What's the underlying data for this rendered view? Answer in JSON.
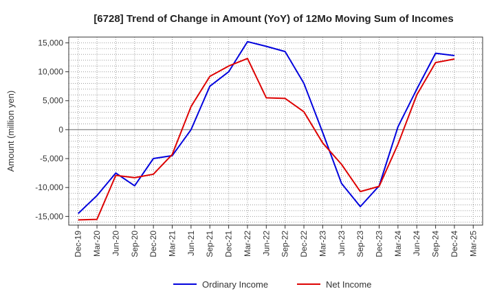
{
  "chart_data": {
    "type": "line",
    "title": "[6728]  Trend of Change in Amount (YoY) of 12Mo Moving Sum of Incomes",
    "xlabel": "",
    "ylabel": "Amount (million yen)",
    "ylim": [
      -16500,
      16000
    ],
    "yticks": [
      15000,
      10000,
      5000,
      0,
      -5000,
      -10000,
      -15000
    ],
    "ytick_labels": [
      "15,000",
      "10,000",
      "5,000",
      "0",
      "-5,000",
      "-10,000",
      "-15,000"
    ],
    "categories": [
      "Dec-19",
      "Mar-20",
      "Jun-20",
      "Sep-20",
      "Dec-20",
      "Mar-21",
      "Jun-21",
      "Sep-21",
      "Dec-21",
      "Mar-22",
      "Jun-22",
      "Sep-22",
      "Dec-22",
      "Mar-23",
      "Jun-23",
      "Sep-23",
      "Dec-23",
      "Mar-24",
      "Jun-24",
      "Sep-24",
      "Dec-24",
      "Mar-25"
    ],
    "grid": true,
    "legend_position": "bottom",
    "series": [
      {
        "name": "Ordinary Income",
        "color": "#0000dd",
        "values": [
          -14500,
          -11400,
          -7500,
          -9700,
          -5000,
          -4500,
          0,
          7500,
          10000,
          15200,
          14400,
          13500,
          8000,
          -500,
          -9300,
          -13300,
          -9700,
          500,
          7000,
          13200,
          12800,
          null
        ]
      },
      {
        "name": "Net Income",
        "color": "#dd0000",
        "values": [
          -15600,
          -15500,
          -7900,
          -8300,
          -7700,
          -4300,
          4000,
          9200,
          11000,
          12300,
          5500,
          5400,
          3100,
          -2300,
          -6000,
          -10700,
          -9800,
          -2500,
          6000,
          11600,
          12200,
          null
        ]
      }
    ]
  }
}
